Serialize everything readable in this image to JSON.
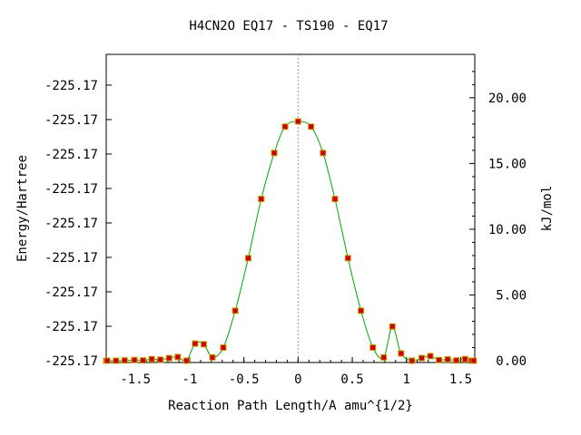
{
  "chart_data": {
    "type": "line",
    "title": "H4CN2O   EQ17 - TS190 - EQ17",
    "xlabel": "Reaction Path Length/A amu^{1/2}",
    "ylabel_left": "Energy/Hartree",
    "ylabel_right": "kJ/mol",
    "xlim": [
      -1.77,
      1.63
    ],
    "ylim_right": [
      0,
      23.3
    ],
    "x_ticks": [
      -1.5,
      -1,
      -0.5,
      0,
      0.5,
      1,
      1.5
    ],
    "x_tick_labels": [
      "-1.5",
      "-1",
      "-0.5",
      "0",
      "0.5",
      "1",
      "1.5"
    ],
    "left_tick_values": [
      0,
      2.62,
      5.24,
      7.86,
      10.48,
      13.1,
      15.72,
      18.34,
      20.96
    ],
    "left_tick_labels": [
      "-225.17",
      "-225.17",
      "-225.17",
      "-225.17",
      "-225.17",
      "-225.17",
      "-225.17",
      "-225.17",
      "-225.17"
    ],
    "right_ticks": [
      0,
      5,
      10,
      15,
      20
    ],
    "right_tick_labels": [
      "0.00",
      "5.00",
      "10.00",
      "15.00",
      "20.00"
    ],
    "ts_x": 0,
    "grid": false,
    "legend": "none",
    "line_color": "#00aa00",
    "marker_color": "#cc0000",
    "marker_edge_color": "#c8a000",
    "vline_color": "#999999",
    "series": [
      {
        "points": [
          [
            -1.77,
            0.0
          ],
          [
            -1.76,
            0.0
          ],
          [
            -1.68,
            0.0
          ],
          [
            -1.6,
            0.02
          ],
          [
            -1.51,
            0.05
          ],
          [
            -1.43,
            0.02
          ],
          [
            -1.35,
            0.12
          ],
          [
            -1.27,
            0.08
          ],
          [
            -1.19,
            0.2
          ],
          [
            -1.11,
            0.28
          ],
          [
            -1.03,
            0.0
          ],
          [
            -0.95,
            1.3
          ],
          [
            -0.87,
            1.25
          ],
          [
            -0.79,
            0.25
          ],
          [
            -0.69,
            1.0
          ],
          [
            -0.58,
            3.8
          ],
          [
            -0.46,
            7.8
          ],
          [
            -0.34,
            12.3
          ],
          [
            -0.22,
            15.8
          ],
          [
            -0.12,
            17.8
          ],
          [
            0.0,
            18.2
          ],
          [
            0.12,
            17.8
          ],
          [
            0.23,
            15.8
          ],
          [
            0.34,
            12.3
          ],
          [
            0.46,
            7.8
          ],
          [
            0.58,
            3.8
          ],
          [
            0.69,
            1.0
          ],
          [
            0.79,
            0.25
          ],
          [
            0.87,
            2.6
          ],
          [
            0.95,
            0.55
          ],
          [
            1.05,
            0.0
          ],
          [
            1.14,
            0.2
          ],
          [
            1.22,
            0.35
          ],
          [
            1.3,
            0.05
          ],
          [
            1.38,
            0.1
          ],
          [
            1.46,
            0.02
          ],
          [
            1.54,
            0.12
          ],
          [
            1.6,
            0.0
          ],
          [
            1.62,
            0.0
          ]
        ]
      }
    ]
  }
}
